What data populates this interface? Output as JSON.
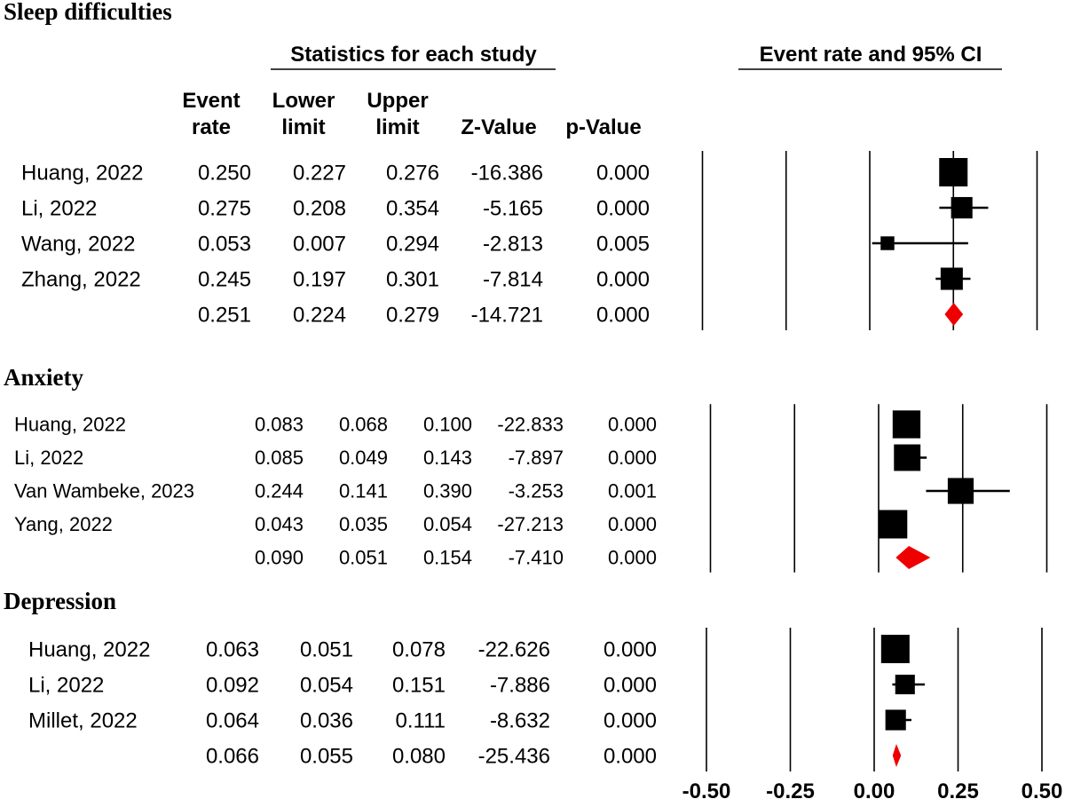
{
  "colors": {
    "text": "#000000",
    "marker": "#000000",
    "summary": "#ee0000"
  },
  "headers": {
    "stats_title": "Statistics for each study",
    "ci_title": "Event rate and 95% CI",
    "columns": [
      {
        "line1": "Event",
        "line2": "rate"
      },
      {
        "line1": "Lower",
        "line2": "limit"
      },
      {
        "line1": "Upper",
        "line2": "limit"
      },
      {
        "line1": "",
        "line2": "Z-Value"
      },
      {
        "line1": "",
        "line2": "p-Value"
      }
    ]
  },
  "chart_data": {
    "type": "forest",
    "x_ticks": [
      "-0.50",
      "-0.25",
      "0.00",
      "0.25",
      "0.50"
    ],
    "xlim": [
      -0.5,
      0.5
    ],
    "vertical_lines": [
      -0.5,
      -0.25,
      0,
      0.25,
      0.5
    ],
    "panels": [
      {
        "title": "Sleep difficulties",
        "studies": [
          {
            "name": "Huang, 2022",
            "rate": "0.250",
            "lower": "0.227",
            "upper": "0.276",
            "z": "-16.386",
            "p": "0.000",
            "weight": 1.0
          },
          {
            "name": "Li, 2022",
            "rate": "0.275",
            "lower": "0.208",
            "upper": "0.354",
            "z": "-5.165",
            "p": "0.000",
            "weight": 0.5
          },
          {
            "name": "Wang, 2022",
            "rate": "0.053",
            "lower": "0.007",
            "upper": "0.294",
            "z": "-2.813",
            "p": "0.005",
            "weight": 0.15
          },
          {
            "name": "Zhang, 2022",
            "rate": "0.245",
            "lower": "0.197",
            "upper": "0.301",
            "z": "-7.814",
            "p": "0.000",
            "weight": 0.55
          }
        ],
        "summary": {
          "rate": "0.251",
          "lower": "0.224",
          "upper": "0.279",
          "z": "-14.721",
          "p": "0.000"
        }
      },
      {
        "title": "Anxiety",
        "studies": [
          {
            "name": "Huang, 2022",
            "rate": "0.083",
            "lower": "0.068",
            "upper": "0.100",
            "z": "-22.833",
            "p": "0.000",
            "weight": 0.95
          },
          {
            "name": "Li, 2022",
            "rate": "0.085",
            "lower": "0.049",
            "upper": "0.143",
            "z": "-7.897",
            "p": "0.000",
            "weight": 0.85
          },
          {
            "name": "Van Wambeke, 2023",
            "rate": "0.244",
            "lower": "0.141",
            "upper": "0.390",
            "z": "-3.253",
            "p": "0.001",
            "weight": 0.8
          },
          {
            "name": "Yang, 2022",
            "rate": "0.043",
            "lower": "0.035",
            "upper": "0.054",
            "z": "-27.213",
            "p": "0.000",
            "weight": 1.0
          }
        ],
        "summary": {
          "rate": "0.090",
          "lower": "0.051",
          "upper": "0.154",
          "z": "-7.410",
          "p": "0.000"
        }
      },
      {
        "title": "Depression",
        "studies": [
          {
            "name": "Huang, 2022",
            "rate": "0.063",
            "lower": "0.051",
            "upper": "0.078",
            "z": "-22.626",
            "p": "0.000",
            "weight": 1.0
          },
          {
            "name": "Li, 2022",
            "rate": "0.092",
            "lower": "0.054",
            "upper": "0.151",
            "z": "-7.886",
            "p": "0.000",
            "weight": 0.4
          },
          {
            "name": "Millet, 2022",
            "rate": "0.064",
            "lower": "0.036",
            "upper": "0.111",
            "z": "-8.632",
            "p": "0.000",
            "weight": 0.45
          }
        ],
        "summary": {
          "rate": "0.066",
          "lower": "0.055",
          "upper": "0.080",
          "z": "-25.436",
          "p": "0.000"
        }
      }
    ]
  }
}
